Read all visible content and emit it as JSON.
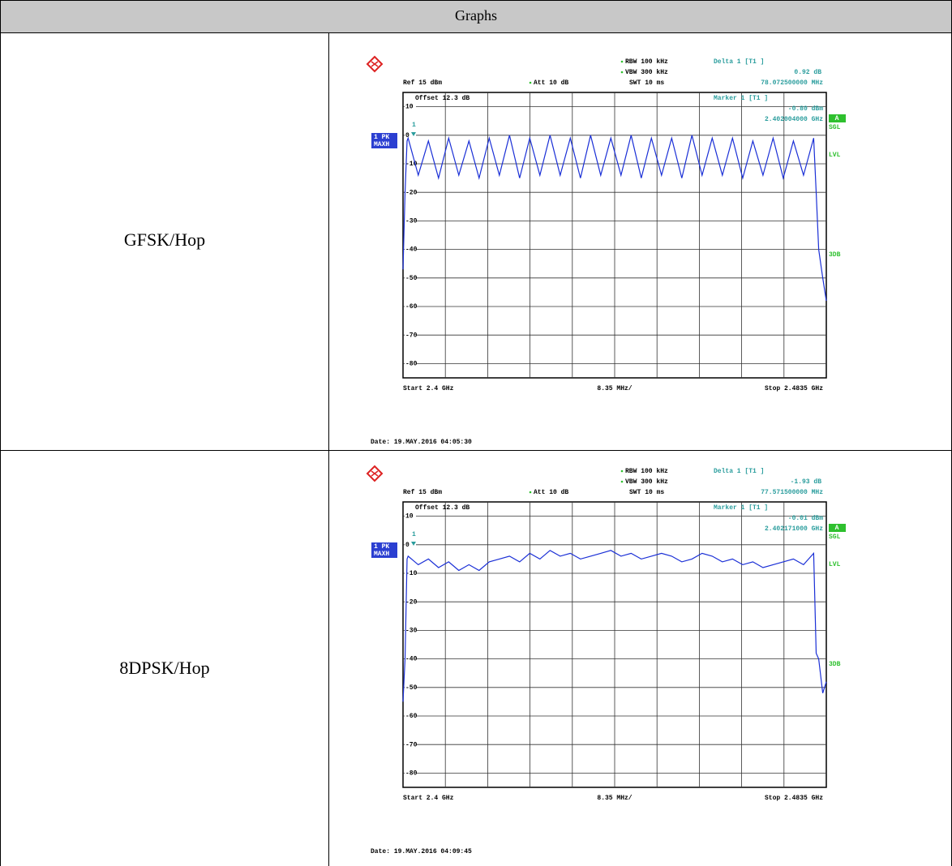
{
  "table": {
    "header": "Graphs",
    "rows": [
      "GFSK/Hop",
      "8DPSK/Hop"
    ]
  },
  "chart_data": [
    {
      "type": "line",
      "ref_level": "Ref 15 dBm",
      "attenuation": "Att 10 dB",
      "offset": "Offset 12.3 dB",
      "rbw": "RBW 100 kHz",
      "vbw": "VBW 300 kHz",
      "sweep_time": "SWT 10 ms",
      "delta_marker": {
        "title": "Delta 1 [T1 ]",
        "level": "0.92 dB",
        "frequency": "78.072500000 MHz"
      },
      "marker": {
        "title": "Marker 1 [T1 ]",
        "level": "-0.80 dBm",
        "frequency": "2.402004000 GHz"
      },
      "marker_label": "1",
      "trace_label": [
        "1 PK",
        "MAXH"
      ],
      "side_labels": [
        "A",
        "SGL",
        "LVL",
        "3DB"
      ],
      "start": "Start 2.4 GHz",
      "span_per_div": "8.35 MHz/",
      "stop": "Stop 2.4835 GHz",
      "date": "Date: 19.MAY.2016 04:05:30",
      "color": "#1a2fd6",
      "grid": true,
      "xlim": [
        2.4,
        2.4835
      ],
      "ylim": [
        -85,
        15
      ],
      "yticks": [
        10,
        0,
        -10,
        -20,
        -30,
        -40,
        -50,
        -60,
        -70,
        -80
      ],
      "x": [
        2.4,
        2.4004,
        2.4008,
        2.401,
        2.403,
        2.405,
        2.407,
        2.409,
        2.411,
        2.413,
        2.415,
        2.417,
        2.419,
        2.421,
        2.423,
        2.425,
        2.427,
        2.429,
        2.431,
        2.433,
        2.435,
        2.437,
        2.439,
        2.441,
        2.443,
        2.445,
        2.447,
        2.449,
        2.451,
        2.453,
        2.455,
        2.457,
        2.459,
        2.461,
        2.463,
        2.465,
        2.467,
        2.469,
        2.471,
        2.473,
        2.475,
        2.477,
        2.479,
        2.481,
        2.4815,
        2.482,
        2.4828,
        2.4835
      ],
      "values": [
        -47,
        -20,
        -2,
        -1,
        -14,
        -2,
        -15,
        -1,
        -14,
        -2,
        -15,
        -1,
        -14,
        0,
        -15,
        -1,
        -14,
        0,
        -14,
        -1,
        -15,
        0,
        -14,
        -1,
        -14,
        0,
        -15,
        -1,
        -14,
        -1,
        -15,
        0,
        -14,
        -1,
        -14,
        -1,
        -15,
        -2,
        -14,
        -1,
        -15,
        -2,
        -14,
        -1,
        -20,
        -40,
        -50,
        -58
      ]
    },
    {
      "type": "line",
      "ref_level": "Ref 15 dBm",
      "attenuation": "Att 10 dB",
      "offset": "Offset 12.3 dB",
      "rbw": "RBW 100 kHz",
      "vbw": "VBW 300 kHz",
      "sweep_time": "SWT 10 ms",
      "delta_marker": {
        "title": "Delta 1 [T1 ]",
        "level": "-1.93 dB",
        "frequency": "77.571500000 MHz"
      },
      "marker": {
        "title": "Marker 1 [T1 ]",
        "level": "-0.01 dBm",
        "frequency": "2.402171000 GHz"
      },
      "marker_label": "1",
      "trace_label": [
        "1 PK",
        "MAXH"
      ],
      "side_labels": [
        "A",
        "SGL",
        "LVL",
        "3DB"
      ],
      "start": "Start 2.4 GHz",
      "span_per_div": "8.35 MHz/",
      "stop": "Stop 2.4835 GHz",
      "date": "Date: 19.MAY.2016 04:09:45",
      "color": "#1a2fd6",
      "grid": true,
      "xlim": [
        2.4,
        2.4835
      ],
      "ylim": [
        -85,
        15
      ],
      "yticks": [
        10,
        0,
        -10,
        -20,
        -30,
        -40,
        -50,
        -60,
        -70,
        -80
      ],
      "x": [
        2.4,
        2.4004,
        2.4008,
        2.401,
        2.403,
        2.405,
        2.407,
        2.409,
        2.411,
        2.413,
        2.415,
        2.417,
        2.419,
        2.421,
        2.423,
        2.425,
        2.427,
        2.429,
        2.431,
        2.433,
        2.435,
        2.437,
        2.439,
        2.441,
        2.443,
        2.445,
        2.447,
        2.449,
        2.451,
        2.453,
        2.455,
        2.457,
        2.459,
        2.461,
        2.463,
        2.465,
        2.467,
        2.469,
        2.471,
        2.473,
        2.475,
        2.477,
        2.479,
        2.481,
        2.4815,
        2.482,
        2.4828,
        2.4835
      ],
      "values": [
        -55,
        -40,
        -5,
        -4,
        -7,
        -5,
        -8,
        -6,
        -9,
        -7,
        -9,
        -6,
        -5,
        -4,
        -6,
        -3,
        -5,
        -2,
        -4,
        -3,
        -5,
        -4,
        -3,
        -2,
        -4,
        -3,
        -5,
        -4,
        -3,
        -4,
        -6,
        -5,
        -3,
        -4,
        -6,
        -5,
        -7,
        -6,
        -8,
        -7,
        -6,
        -5,
        -7,
        -3,
        -38,
        -40,
        -52,
        -48
      ]
    }
  ]
}
